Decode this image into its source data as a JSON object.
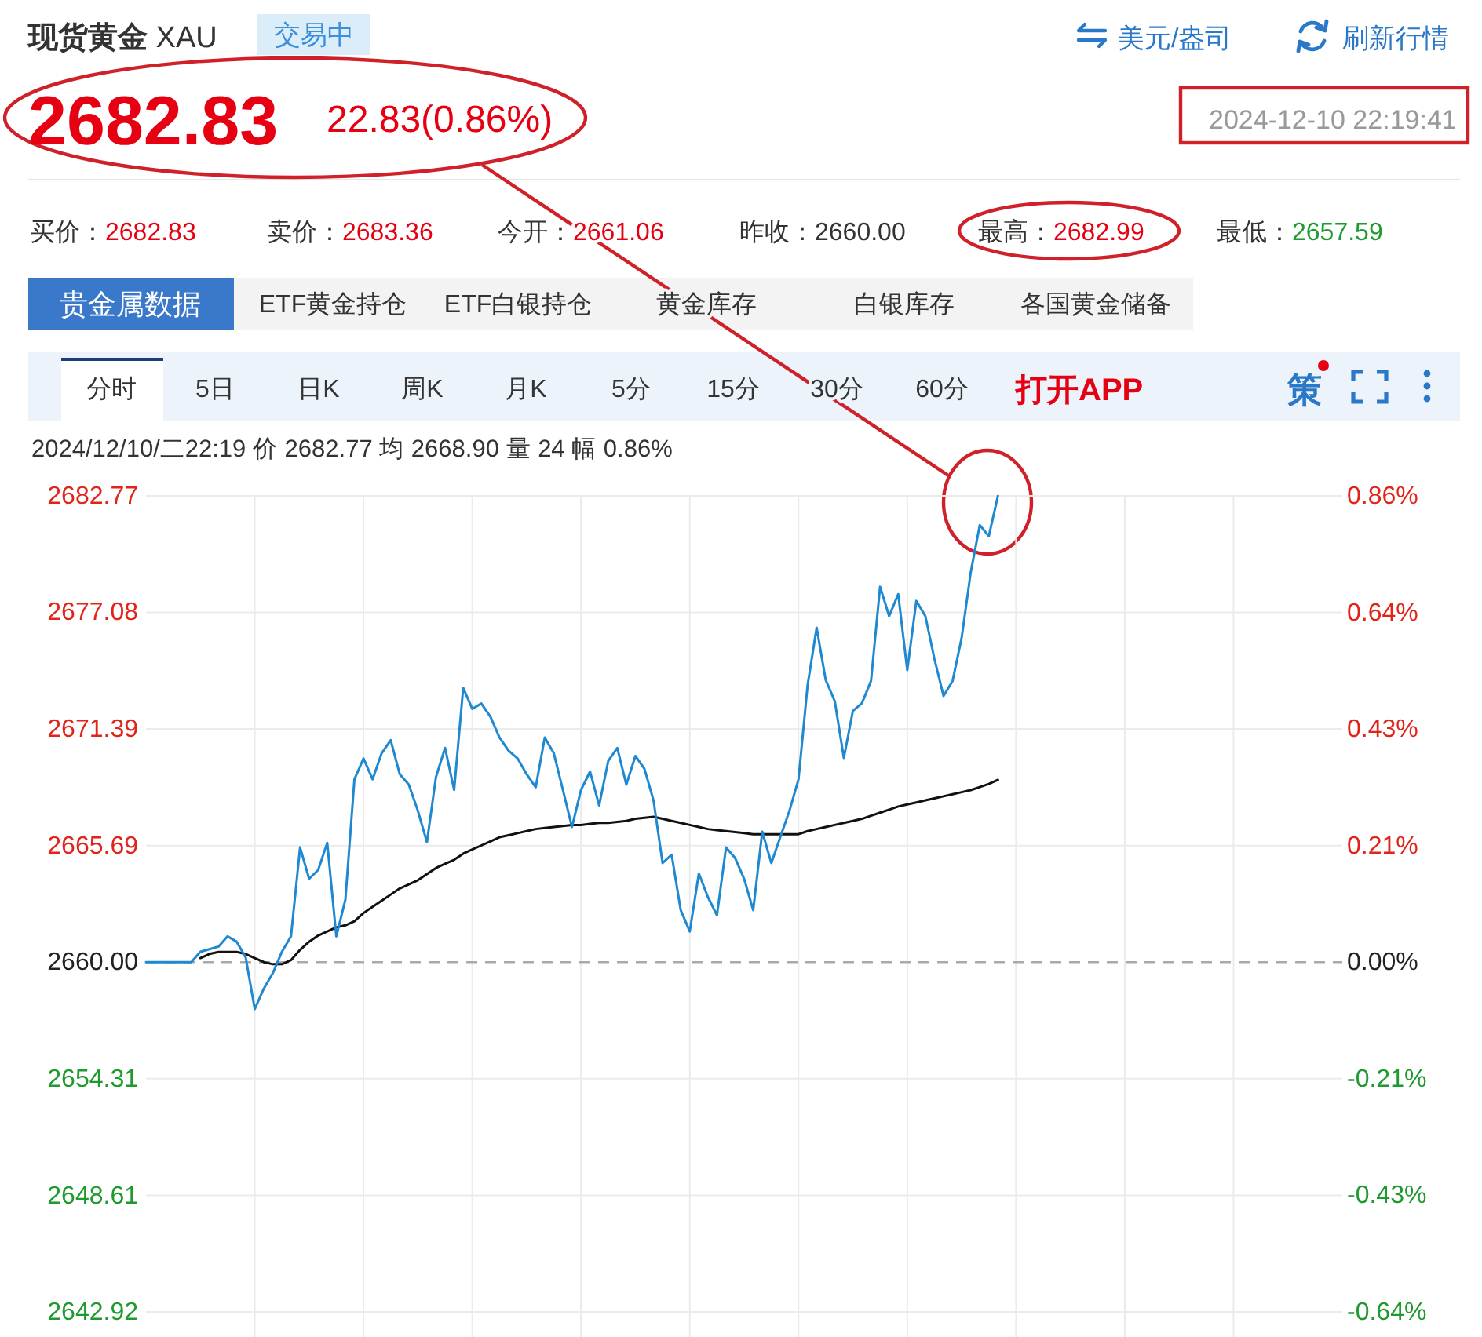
{
  "chart_data": [
    {
      "type": "other",
      "title": "**现货黄金** XAU",
      "annotations": [
        "交易中",
        "美元/盎司",
        "刷新行情",
        "2682.83",
        "22.83(0.86%)",
        "2024-12-10 22:19:41",
        "买价：",
        "2682.83",
        "卖价：",
        "2683.36",
        "今开：",
        "2661.06",
        "昨收：",
        "2660.00",
        "最高：",
        "2682.99",
        "最低：",
        "2657.59",
        "贵金属数据",
        "ETF黄金持仓",
        "ETF白银持仓",
        "黄金库存",
        "白银库存",
        "各国黄金储备",
        "分时",
        "5日",
        "日K",
        "周K",
        "月K",
        "5分",
        "15分",
        "30分",
        "60分",
        "打开APP",
        "策"
      ]
    },
    {
      "type": "line",
      "subtitle": "2024/12/10/二22:19 价 2682.77 均 2668.90 量 24 幅 0.86%",
      "categories": [
        null,
        null,
        null,
        null,
        null,
        null,
        null,
        null,
        null,
        null,
        null,
        null,
        null,
        null,
        null,
        null,
        null,
        null,
        null,
        null,
        null,
        null,
        null,
        null,
        null,
        null,
        null,
        null,
        null,
        null,
        null,
        null,
        null,
        null,
        null,
        null,
        null,
        null,
        null,
        null,
        null,
        null,
        null,
        null,
        null,
        null,
        null,
        null,
        null,
        null,
        null,
        null,
        null,
        null,
        null,
        null,
        null,
        null,
        null,
        null,
        null,
        null,
        null,
        null,
        null,
        null,
        null,
        null,
        null,
        null,
        null,
        null,
        null,
        null,
        null,
        null,
        null,
        null,
        null,
        null,
        null,
        null,
        null,
        null,
        null,
        null,
        null,
        null,
        null,
        null,
        null,
        null,
        null,
        null,
        null,
        null,
        null,
        null,
        null,
        null,
        null,
        null,
        null,
        null,
        null,
        null,
        null,
        null,
        null,
        null,
        null,
        null,
        null,
        null,
        null,
        null,
        null,
        null,
        null,
        null,
        null,
        null,
        null,
        null,
        null,
        null,
        null,
        null,
        null,
        null,
        null,
        null,
        null
      ],
      "series": [
        {
          "color": "#111111",
          "values": [
            null,
            null,
            null,
            null,
            null,
            null,
            2660.2,
            2660.4,
            2660.5,
            2660.5,
            2660.5,
            2660.4,
            2660.2,
            2660.0,
            2659.9,
            2659.9,
            2660.1,
            2660.6,
            2661.0,
            2661.3,
            2661.5,
            2661.7,
            2661.8,
            2662.0,
            2662.4,
            2662.7,
            2663.0,
            2663.3,
            2663.6,
            2663.8,
            2664.0,
            2664.3,
            2664.6,
            2664.8,
            2665.0,
            2665.3,
            2665.5,
            2665.7,
            2665.9,
            2666.1,
            2666.2,
            2666.3,
            2666.4,
            2666.5,
            2666.55,
            2666.6,
            2666.65,
            2666.7,
            2666.7,
            2666.75,
            2666.8,
            2666.8,
            2666.85,
            2666.9,
            2667.0,
            2667.05,
            2667.1,
            2667.0,
            2666.9,
            2666.8,
            2666.7,
            2666.6,
            2666.5,
            2666.45,
            2666.4,
            2666.35,
            2666.3,
            2666.25,
            2666.25,
            2666.25,
            2666.25,
            2666.25,
            2666.25,
            2666.4,
            2666.5,
            2666.6,
            2666.7,
            2666.8,
            2666.9,
            2667.0,
            2667.15,
            2667.3,
            2667.45,
            2667.6,
            2667.7,
            2667.8,
            2667.9,
            2668.0,
            2668.1,
            2668.2,
            2668.3,
            2668.4,
            2668.55,
            2668.7,
            2668.9,
            null,
            null,
            null,
            null,
            null,
            null,
            null,
            null,
            null,
            null,
            null,
            null,
            null,
            null,
            null,
            null,
            null,
            null,
            null,
            null,
            null,
            null,
            null,
            null,
            null,
            null,
            null,
            null,
            null,
            null,
            null,
            null,
            null,
            null,
            null,
            null,
            null,
            null
          ]
        },
        {
          "color": "#1e88d0",
          "values": [
            2660.0,
            2660.0,
            2660.0,
            2660.0,
            2660.0,
            2660.0,
            2660.51,
            2660.63,
            2660.76,
            2661.26,
            2661.0,
            2660.23,
            2657.71,
            2658.71,
            2659.47,
            2660.51,
            2661.26,
            2665.6,
            2664.07,
            2664.5,
            2665.83,
            2661.26,
            2663.05,
            2668.93,
            2669.95,
            2668.93,
            2670.2,
            2670.84,
            2669.18,
            2668.67,
            2667.39,
            2665.86,
            2669.05,
            2670.46,
            2668.41,
            2673.4,
            2672.37,
            2672.63,
            2671.99,
            2670.97,
            2670.33,
            2669.95,
            2669.18,
            2668.54,
            2670.97,
            2670.2,
            2668.41,
            2666.6,
            2668.41,
            2669.31,
            2667.65,
            2669.82,
            2670.46,
            2668.67,
            2670.07,
            2669.44,
            2667.9,
            2664.84,
            2665.25,
            2662.54,
            2661.5,
            2664.33,
            2663.18,
            2662.29,
            2665.6,
            2665.09,
            2664.07,
            2662.54,
            2666.37,
            2664.84,
            2666.12,
            2667.39,
            2668.93,
            2673.52,
            2676.33,
            2673.78,
            2672.75,
            2669.97,
            2672.27,
            2672.65,
            2673.73,
            2678.33,
            2676.9,
            2677.97,
            2674.26,
            2677.64,
            2676.9,
            2674.8,
            2673.0,
            2673.73,
            2675.84,
            2679.03,
            2681.34,
            2680.8,
            2682.77,
            null,
            null,
            null,
            null,
            null,
            null,
            null,
            null,
            null,
            null,
            null,
            null,
            null,
            null,
            null,
            null,
            null,
            null,
            null,
            null,
            null,
            null,
            null,
            null,
            null,
            null,
            null,
            null,
            null,
            null,
            null,
            null,
            null,
            null,
            null,
            null,
            null,
            null
          ]
        }
      ],
      "ylim": [
        2642.92,
        2682.77
      ],
      "yticks": [
        2642.92,
        2648.61,
        2654.31,
        {
          "value": 2660,
          "label": "2660.00"
        },
        2665.69,
        2671.39,
        2677.08,
        2682.77
      ],
      "y2lim": [
        -0.642,
        0.856
      ],
      "y2ticks": [
        {
          "value": -0.642,
          "label": "-0.64%"
        },
        {
          "value": -0.428,
          "label": "-0.43%"
        },
        {
          "value": -0.214,
          "label": "-0.21%"
        },
        {
          "value": 0,
          "label": "0.00%"
        },
        {
          "value": 0.214,
          "label": "0.21%"
        },
        {
          "value": 0.428,
          "label": "0.43%"
        },
        {
          "value": 0.642,
          "label": "0.64%"
        },
        {
          "value": 0.856,
          "label": "0.86%"
        }
      ],
      "grid": true,
      "ref_lines": [
        {
          "axis": "y",
          "value": 2660,
          "color": "#aaaaaa",
          "line_style": "dashed"
        }
      ]
    }
  ]
}
